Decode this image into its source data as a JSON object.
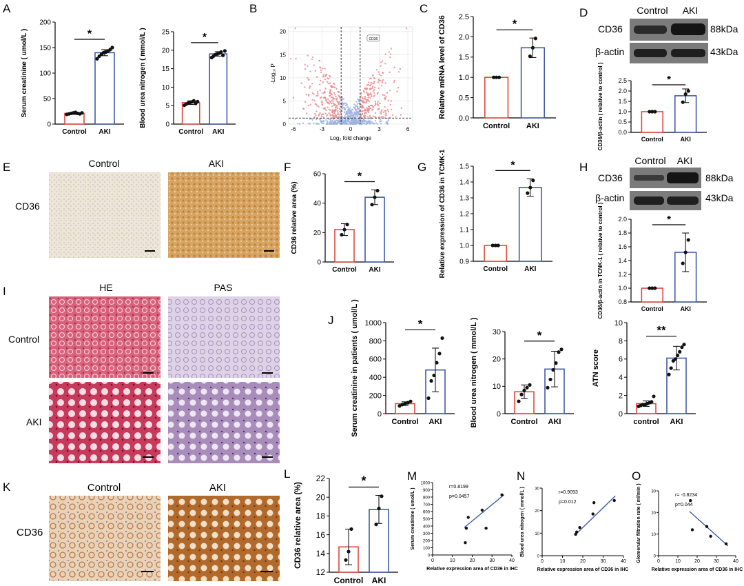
{
  "colors": {
    "control": "#e2453d",
    "aki": "#3f5aa8",
    "axis": "#000000",
    "blot_bg": "#8d8d8d",
    "band": "#222222"
  },
  "panels": {
    "A": "A",
    "B": "B",
    "C": "C",
    "D": "D",
    "E": "E",
    "F": "F",
    "G": "G",
    "H": "H",
    "I": "I",
    "J": "J",
    "K": "K",
    "L": "L",
    "M": "M",
    "N": "N",
    "O": "O"
  },
  "images": {
    "E": {
      "row_label": "CD36",
      "cols": [
        "Control",
        "AKI"
      ]
    },
    "I": {
      "cols": [
        "HE",
        "PAS"
      ],
      "rows": [
        "Control",
        "AKI"
      ]
    },
    "K": {
      "row_label": "CD36",
      "cols": [
        "Control",
        "AKI"
      ]
    }
  },
  "blots": {
    "D": {
      "header": [
        "Control",
        "AKI"
      ],
      "rows": [
        {
          "label": "CD36",
          "kda": "88kDa"
        },
        {
          "label": "β-actin",
          "kda": "43kDa"
        }
      ]
    },
    "H": {
      "header": [
        "Control",
        "AKI"
      ],
      "rows": [
        {
          "label": "CD36",
          "kda": "88kDa"
        },
        {
          "label": "β-actin",
          "kda": "43kDa"
        }
      ]
    }
  },
  "chart_data": [
    {
      "id": "A1",
      "type": "bar",
      "ylabel": "Serum creatinine ( umol/L )",
      "yticks": [
        0,
        50,
        100,
        150,
        200
      ],
      "ylim": [
        0,
        200
      ],
      "categories": [
        "Control",
        "AKI"
      ],
      "values": [
        21,
        140
      ],
      "err": [
        2,
        6
      ],
      "sig": "*",
      "points": [
        [
          19,
          20,
          21,
          22,
          23,
          21,
          20,
          22
        ],
        [
          128,
          133,
          137,
          140,
          141,
          143,
          146,
          150
        ]
      ]
    },
    {
      "id": "A2",
      "type": "bar",
      "ylabel": "Blood urea nitrogen ( mmol/L )",
      "yticks": [
        0,
        5,
        10,
        15,
        20,
        25
      ],
      "ylim": [
        0,
        25
      ],
      "categories": [
        "Control",
        "AKI"
      ],
      "values": [
        5.8,
        19
      ],
      "err": [
        0.5,
        0.6
      ],
      "sig": "*",
      "points": [
        [
          5.1,
          5.4,
          5.7,
          5.9,
          6.0,
          6.3,
          5.6,
          6.1
        ],
        [
          18.0,
          18.4,
          18.8,
          19.0,
          19.2,
          19.5,
          18.6,
          19.8
        ]
      ]
    },
    {
      "id": "B",
      "type": "scatter",
      "xlabel": "Log₂ fold change",
      "ylabel": "-Log₁₀ P",
      "xticks": [
        -6,
        -3,
        0,
        3,
        6
      ],
      "yticks": [
        0,
        5,
        10,
        15,
        20
      ],
      "xlim": [
        -6.5,
        6.5
      ],
      "ylim": [
        0,
        21
      ],
      "threshold_x": [
        -1,
        1
      ],
      "threshold_y": 1.3,
      "gene_label": "CD36",
      "gene_point": [
        1.8,
        18.5
      ]
    },
    {
      "id": "C",
      "type": "bar",
      "ylabel": "Relative mRNA level of CD36",
      "yticks": [
        0.0,
        0.5,
        1.0,
        1.5,
        2.0,
        2.5
      ],
      "ylim": [
        0,
        2.5
      ],
      "categories": [
        "Control",
        "AKI"
      ],
      "values": [
        1.0,
        1.73
      ],
      "err": [
        0.01,
        0.24
      ],
      "sig": "*",
      "points": [
        [
          1.0,
          1.0,
          1.0
        ],
        [
          1.52,
          1.73,
          1.96
        ]
      ]
    },
    {
      "id": "D",
      "type": "bar",
      "ylabel": "CD36/β-actin ( relative to control )",
      "yticks": [
        0.0,
        0.5,
        1.0,
        1.5,
        2.0,
        2.5
      ],
      "ylim": [
        0,
        2.5
      ],
      "categories": [
        "Control",
        "AKI"
      ],
      "values": [
        1.0,
        1.77
      ],
      "err": [
        0.01,
        0.33
      ],
      "sig": "*",
      "points": [
        [
          1.0,
          1.0,
          1.0
        ],
        [
          1.46,
          1.85,
          2.0
        ]
      ]
    },
    {
      "id": "F",
      "type": "bar",
      "ylabel": "CD36 relative area (%)",
      "yticks": [
        0,
        20,
        40,
        60
      ],
      "ylim": [
        0,
        60
      ],
      "categories": [
        "Control",
        "AKI"
      ],
      "values": [
        22,
        44
      ],
      "err": [
        4,
        5
      ],
      "sig": "*",
      "points": [
        [
          18.5,
          22,
          25.5
        ],
        [
          39,
          44,
          48.5
        ]
      ]
    },
    {
      "id": "G",
      "type": "bar",
      "ylabel": "Relative expression of CD36 in TCMK-1",
      "yticks": [
        0.9,
        1.0,
        1.1,
        1.2,
        1.3,
        1.4,
        1.5
      ],
      "ylim": [
        0.9,
        1.5
      ],
      "categories": [
        "Control",
        "AKI"
      ],
      "values": [
        1.0,
        1.365
      ],
      "err": [
        0.002,
        0.055
      ],
      "sig": "*",
      "points": [
        [
          1.0,
          1.0,
          1.0
        ],
        [
          1.33,
          1.365,
          1.41
        ]
      ]
    },
    {
      "id": "H",
      "type": "bar",
      "ylabel": "CD36/β-actin in TCNK-1 ( relative to control )",
      "yticks": [
        0.8,
        1.0,
        1.2,
        1.4,
        1.6,
        1.8,
        2.0
      ],
      "ylim": [
        0.8,
        2.0
      ],
      "categories": [
        "Control",
        "AKI"
      ],
      "values": [
        1.0,
        1.52
      ],
      "err": [
        0.005,
        0.28
      ],
      "sig": "*",
      "points": [
        [
          1.0,
          1.0,
          1.0
        ],
        [
          1.36,
          1.52,
          1.7
        ]
      ]
    },
    {
      "id": "J1",
      "type": "bar",
      "ylabel": "Serum creatinine in patients ( umol/L )",
      "yticks": [
        0,
        200,
        400,
        600,
        800,
        1000
      ],
      "ylim": [
        0,
        1000
      ],
      "categories": [
        "Control",
        "AKI"
      ],
      "values": [
        110,
        480
      ],
      "err": [
        20,
        240
      ],
      "sig": "*",
      "points": [
        [
          85,
          100,
          110,
          120,
          135
        ],
        [
          170,
          360,
          420,
          560,
          660,
          830
        ]
      ]
    },
    {
      "id": "J2",
      "type": "bar",
      "ylabel": "Blood urea nitrogen ( mmol/L )",
      "yticks": [
        0,
        10,
        20,
        30
      ],
      "ylim": [
        0,
        30
      ],
      "categories": [
        "Control",
        "AKI"
      ],
      "values": [
        8,
        16.3
      ],
      "err": [
        2.5,
        6.5
      ],
      "sig": "*",
      "points": [
        [
          4.5,
          7,
          8.5,
          9.5,
          10.5
        ],
        [
          9.5,
          12.5,
          16,
          18.5,
          22.5,
          23.5
        ]
      ]
    },
    {
      "id": "J3",
      "type": "bar",
      "ylabel": "ATN score",
      "yticks": [
        0,
        2,
        4,
        6,
        8,
        10
      ],
      "ylim": [
        0,
        10
      ],
      "categories": [
        "control",
        "AKI"
      ],
      "values": [
        1.1,
        6.1
      ],
      "err": [
        0.3,
        1.3
      ],
      "sig": "**",
      "points": [
        [
          0.8,
          0.9,
          1.0,
          1.0,
          1.1,
          1.2,
          1.3,
          1.9
        ],
        [
          4.3,
          5.0,
          5.8,
          6.0,
          6.4,
          6.8,
          7.3,
          7.6
        ]
      ]
    },
    {
      "id": "L",
      "type": "bar",
      "ylabel": "CD36 relative area (%)",
      "yticks": [
        12,
        14,
        16,
        18,
        20,
        22
      ],
      "ylim": [
        12,
        22
      ],
      "categories": [
        "Control",
        "AKI"
      ],
      "values": [
        14.7,
        18.7
      ],
      "err": [
        1.9,
        1.5
      ],
      "sig": "*",
      "points": [
        [
          13.3,
          14.2,
          16.6
        ],
        [
          17.1,
          18.8,
          20.1
        ]
      ]
    },
    {
      "id": "M",
      "type": "scatter",
      "xlabel": "Relative expression area of CD36 in IHC",
      "ylabel": "Serum creatinine ( umol/L )",
      "xticks": [
        0,
        10,
        20,
        30,
        40
      ],
      "yticks": [
        0,
        100,
        200,
        300,
        400,
        500,
        600,
        700,
        800,
        900,
        1000
      ],
      "xlim": [
        0,
        40
      ],
      "ylim": [
        0,
        1000
      ],
      "r": "r=0.8199",
      "p": "p=0.0457",
      "x": [
        16.5,
        17,
        18,
        25,
        27,
        35
      ],
      "y": [
        170,
        370,
        520,
        620,
        370,
        830
      ],
      "fit": [
        [
          16,
          380
        ],
        [
          36,
          830
        ]
      ]
    },
    {
      "id": "N",
      "type": "scatter",
      "xlabel": "Relative expression area of CD36 in IHC",
      "ylabel": "Blood urea nitrogen ( mmol/L )",
      "xticks": [
        0,
        10,
        20,
        30,
        40
      ],
      "yticks": [
        0,
        10,
        20,
        30
      ],
      "xlim": [
        0,
        40
      ],
      "ylim": [
        0,
        30
      ],
      "r": "r=0.9093",
      "p": "p=0.012",
      "x": [
        16.5,
        17,
        18.5,
        25,
        25.5,
        35.5
      ],
      "y": [
        9.5,
        10.5,
        12.5,
        18.5,
        23.5,
        24.5
      ],
      "fit": [
        [
          16,
          9
        ],
        [
          36,
          26.5
        ]
      ]
    },
    {
      "id": "O",
      "type": "scatter",
      "xlabel": "Relative expression area of CD36 in IHC",
      "ylabel": "Glomerular filtration rate ( ml/min )",
      "xticks": [
        0,
        10,
        20,
        30,
        40
      ],
      "yticks": [
        0,
        10,
        20,
        30
      ],
      "xlim": [
        0,
        40
      ],
      "ylim": [
        0,
        30
      ],
      "r": "r= -0.8234",
      "p": "p=0.044",
      "x": [
        16.5,
        17.5,
        25,
        27,
        35
      ],
      "y": [
        25.5,
        12,
        13.5,
        9,
        5.5
      ],
      "fit": [
        [
          16,
          20.5
        ],
        [
          36,
          4.5
        ]
      ]
    }
  ]
}
